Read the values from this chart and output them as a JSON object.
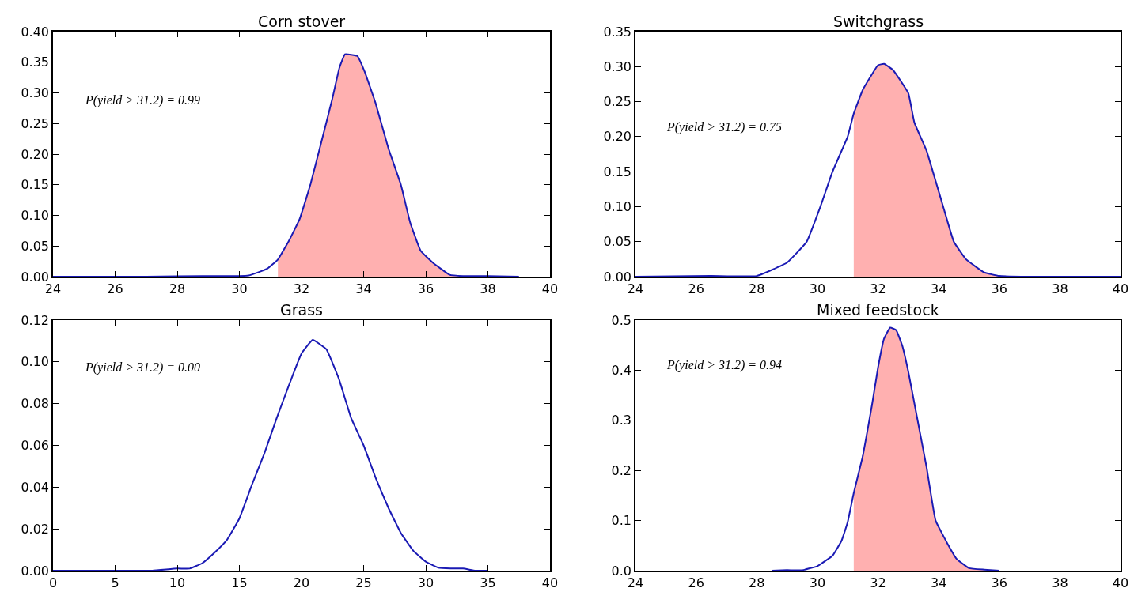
{
  "chart_data": [
    {
      "type": "line",
      "title": "Corn stover",
      "xlim": [
        24,
        40
      ],
      "xticks": [
        24,
        26,
        28,
        30,
        32,
        34,
        36,
        38,
        40
      ],
      "ylim": [
        0,
        0.4
      ],
      "yticks": [
        {
          "value": 0,
          "label": "0.00"
        },
        {
          "value": 0.05,
          "label": "0.05"
        },
        {
          "value": 0.1,
          "label": "0.10"
        },
        {
          "value": 0.15,
          "label": "0.15"
        },
        {
          "value": 0.2,
          "label": "0.20"
        },
        {
          "value": 0.25,
          "label": "0.25"
        },
        {
          "value": 0.3,
          "label": "0.30"
        },
        {
          "value": 0.35,
          "label": "0.35"
        },
        {
          "value": 0.4,
          "label": "0.40"
        }
      ],
      "annotations": [
        "P(yield > 31.2) = 0.99"
      ],
      "series": [
        {
          "type": "area",
          "color": "#ffb0b0",
          "x": [
            31.24,
            31.6,
            31.94,
            32.29,
            32.64,
            32.99,
            33.22,
            33.4,
            33.8,
            34.03,
            34.38,
            34.8,
            35.2,
            35.5,
            35.84,
            36.25,
            36.77,
            37.2
          ],
          "values": [
            0.028,
            0.059,
            0.094,
            0.151,
            0.22,
            0.29,
            0.341,
            0.363,
            0.36,
            0.335,
            0.284,
            0.209,
            0.15,
            0.088,
            0.042,
            0.022,
            0.003,
            0.001
          ]
        },
        {
          "color": "#1a1ab4",
          "x": [
            24,
            27,
            29,
            30,
            30.3,
            30.6,
            30.9,
            31.24,
            31.6,
            31.94,
            32.29,
            32.64,
            32.99,
            33.22,
            33.4,
            33.8,
            34.03,
            34.38,
            34.8,
            35.2,
            35.5,
            35.84,
            36.25,
            36.77,
            37.2,
            38,
            39
          ],
          "values": [
            0,
            0,
            0.001,
            0.001,
            0.002,
            0.007,
            0.013,
            0.028,
            0.059,
            0.094,
            0.151,
            0.22,
            0.29,
            0.341,
            0.363,
            0.36,
            0.335,
            0.284,
            0.209,
            0.15,
            0.088,
            0.042,
            0.022,
            0.003,
            0.001,
            0.001,
            0
          ]
        }
      ]
    },
    {
      "type": "line",
      "title": "Switchgrass",
      "xlim": [
        24,
        40
      ],
      "xticks": [
        24,
        26,
        28,
        30,
        32,
        34,
        36,
        38,
        40
      ],
      "ylim": [
        0,
        0.35
      ],
      "yticks": [
        {
          "value": 0,
          "label": "0.00"
        },
        {
          "value": 0.05,
          "label": "0.05"
        },
        {
          "value": 0.1,
          "label": "0.10"
        },
        {
          "value": 0.15,
          "label": "0.15"
        },
        {
          "value": 0.2,
          "label": "0.20"
        },
        {
          "value": 0.25,
          "label": "0.25"
        },
        {
          "value": 0.3,
          "label": "0.30"
        },
        {
          "value": 0.35,
          "label": "0.35"
        }
      ],
      "annotations": [
        "P(yield > 31.2) = 0.75"
      ],
      "series": [
        {
          "type": "area",
          "color": "#ffb0b0",
          "x": [
            31.2,
            31.5,
            32,
            32.2,
            32.5,
            33,
            33.2,
            33.6,
            34.15,
            34.5,
            34.9,
            35.5,
            36
          ],
          "values": [
            0.233,
            0.267,
            0.302,
            0.304,
            0.295,
            0.262,
            0.22,
            0.18,
            0.1,
            0.05,
            0.025,
            0.006,
            0.001
          ]
        },
        {
          "color": "#1a1ab4",
          "x": [
            24,
            26.5,
            28,
            29,
            29.65,
            30.1,
            30.5,
            31,
            31.2,
            31.5,
            32,
            32.2,
            32.5,
            33,
            33.2,
            33.6,
            34.15,
            34.5,
            34.9,
            35.5,
            36,
            37,
            40
          ],
          "values": [
            0,
            0.001,
            0.001,
            0.02,
            0.05,
            0.1,
            0.15,
            0.2,
            0.233,
            0.267,
            0.302,
            0.304,
            0.295,
            0.262,
            0.22,
            0.18,
            0.1,
            0.05,
            0.025,
            0.006,
            0.001,
            0,
            0
          ]
        }
      ]
    },
    {
      "type": "line",
      "title": "Grass",
      "xlim": [
        0,
        40
      ],
      "xticks": [
        0,
        5,
        10,
        15,
        20,
        25,
        30,
        35,
        40
      ],
      "ylim": [
        0,
        0.12
      ],
      "yticks": [
        {
          "value": 0,
          "label": "0.00"
        },
        {
          "value": 0.02,
          "label": "0.02"
        },
        {
          "value": 0.04,
          "label": "0.04"
        },
        {
          "value": 0.06,
          "label": "0.06"
        },
        {
          "value": 0.08,
          "label": "0.08"
        },
        {
          "value": 0.1,
          "label": "0.10"
        },
        {
          "value": 0.12,
          "label": "0.12"
        }
      ],
      "annotations": [
        "P(yield > 31.2) = 0.00"
      ],
      "series": [
        {
          "color": "#1a1ab4",
          "x": [
            0,
            5,
            8,
            10,
            11,
            12,
            13,
            14,
            15,
            16,
            17,
            18,
            19,
            20,
            20.9,
            22,
            23,
            24,
            25,
            26,
            27,
            28,
            29,
            30,
            31,
            32,
            33,
            34,
            35
          ],
          "values": [
            0,
            0,
            0,
            0.001,
            0.001,
            0.0035,
            0.0086,
            0.0147,
            0.025,
            0.041,
            0.056,
            0.073,
            0.089,
            0.104,
            0.1105,
            0.106,
            0.092,
            0.073,
            0.06,
            0.044,
            0.03,
            0.018,
            0.0095,
            0.0043,
            0.0014,
            0.001,
            0.001,
            0,
            0
          ]
        }
      ]
    },
    {
      "type": "line",
      "title": "Mixed feedstock",
      "xlim": [
        24,
        40
      ],
      "xticks": [
        24,
        26,
        28,
        30,
        32,
        34,
        36,
        38,
        40
      ],
      "ylim": [
        0,
        0.5
      ],
      "yticks": [
        {
          "value": 0,
          "label": "0.0"
        },
        {
          "value": 0.1,
          "label": "0.1"
        },
        {
          "value": 0.2,
          "label": "0.2"
        },
        {
          "value": 0.3,
          "label": "0.3"
        },
        {
          "value": 0.4,
          "label": "0.4"
        },
        {
          "value": 0.5,
          "label": "0.5"
        }
      ],
      "annotations": [
        "P(yield > 31.2) = 0.94"
      ],
      "series": [
        {
          "type": "area",
          "color": "#ffb0b0",
          "x": [
            31.2,
            31.5,
            31.8,
            32,
            32.2,
            32.4,
            32.6,
            32.8,
            33,
            33.3,
            33.6,
            33.9,
            34.3,
            34.6,
            35,
            35.5
          ],
          "values": [
            0.155,
            0.229,
            0.33,
            0.405,
            0.463,
            0.485,
            0.48,
            0.449,
            0.397,
            0.302,
            0.207,
            0.1,
            0.053,
            0.023,
            0.005,
            0.002
          ]
        },
        {
          "color": "#1a1ab4",
          "x": [
            28.5,
            29,
            29.5,
            30,
            30.5,
            30.8,
            31,
            31.2,
            31.5,
            31.8,
            32,
            32.2,
            32.4,
            32.6,
            32.8,
            33,
            33.3,
            33.6,
            33.9,
            34.3,
            34.6,
            35,
            35.5,
            36
          ],
          "values": [
            0,
            0.001,
            0.001,
            0.009,
            0.03,
            0.06,
            0.097,
            0.155,
            0.229,
            0.33,
            0.405,
            0.463,
            0.485,
            0.48,
            0.449,
            0.397,
            0.302,
            0.207,
            0.1,
            0.053,
            0.023,
            0.005,
            0.002,
            0
          ]
        }
      ]
    }
  ]
}
